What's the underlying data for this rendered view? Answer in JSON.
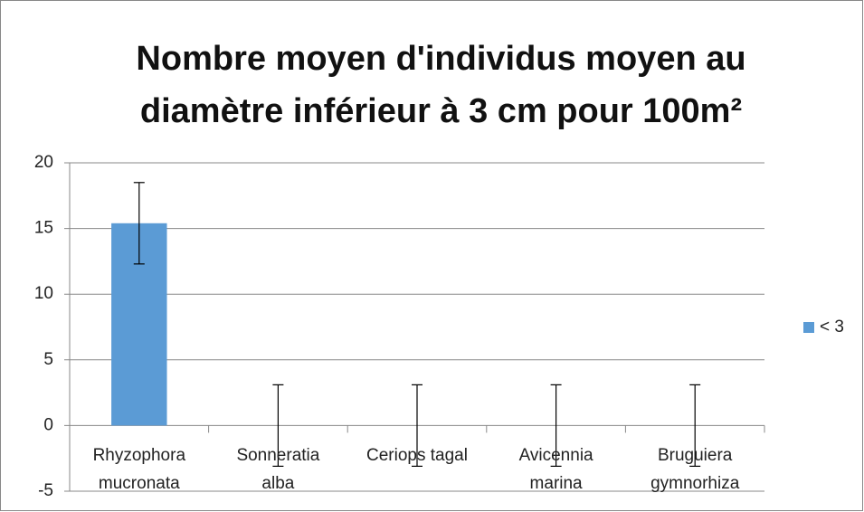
{
  "chart_data": {
    "type": "bar",
    "title": "Nombre moyen d'individus moyen au\ndiamètre inférieur à 3 cm pour 100m²",
    "categories": [
      "Rhyzophora\nmucronata",
      "Sonneratia\nalba",
      "Ceriops tagal",
      "Avicennia\nmarina",
      "Bruguiera\ngymnorhiza"
    ],
    "series": [
      {
        "name": "< 3",
        "color": "#5b9bd5",
        "values": [
          15.4,
          0,
          0,
          0,
          0
        ],
        "errors": [
          3.1,
          3.1,
          3.1,
          3.1,
          3.1
        ]
      }
    ],
    "ylim": [
      -5,
      20
    ],
    "yticks": [
      -5,
      0,
      5,
      10,
      15,
      20
    ],
    "grid": true,
    "legend": "right"
  }
}
